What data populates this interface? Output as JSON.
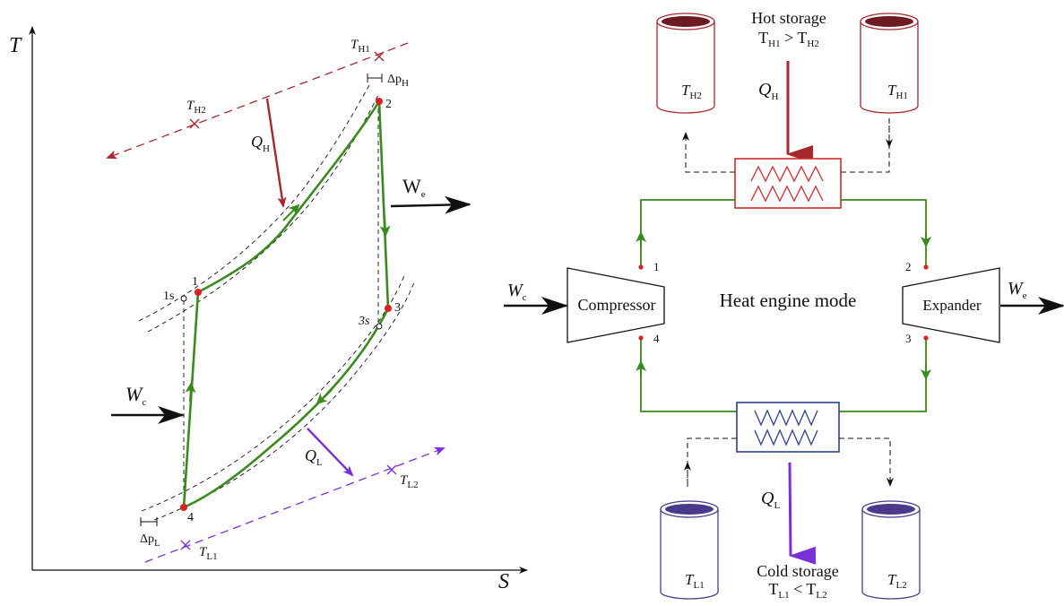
{
  "ts_diagram": {
    "axes": {
      "y": "T",
      "x": "S"
    },
    "states": {
      "p1": "1",
      "p1s": "1s",
      "p2": "2",
      "p3": "3",
      "p3s": "3s",
      "p4": "4"
    },
    "temps": {
      "th1": {
        "main": "T",
        "sub": "H1"
      },
      "th2": {
        "main": "T",
        "sub": "H2"
      },
      "tl1": {
        "main": "T",
        "sub": "L1"
      },
      "tl2": {
        "main": "T",
        "sub": "L2"
      }
    },
    "pressure_drops": {
      "dph": {
        "main": "Δp",
        "sub": "H"
      },
      "dpl": {
        "main": "Δp",
        "sub": "L"
      }
    },
    "heat": {
      "qh": {
        "main": "Q",
        "sub": "H"
      },
      "ql": {
        "main": "Q",
        "sub": "L"
      }
    },
    "work": {
      "we": {
        "main": "W",
        "sub": "e"
      },
      "wc": {
        "main": "W",
        "sub": "c"
      }
    }
  },
  "schematic": {
    "hot_storage": {
      "title": "Hot storage",
      "cond_a": "T",
      "cond_a_sub": "H1",
      "cond_op": ">",
      "cond_b": "T",
      "cond_b_sub": "H2"
    },
    "cold_storage": {
      "title": "Cold storage",
      "cond_a": "T",
      "cond_a_sub": "L1",
      "cond_op": "<",
      "cond_b": "T",
      "cond_b_sub": "L2"
    },
    "tanks": {
      "th2": {
        "main": "T",
        "sub": "H2"
      },
      "th1": {
        "main": "T",
        "sub": "H1"
      },
      "tl1": {
        "main": "T",
        "sub": "L1"
      },
      "tl2": {
        "main": "T",
        "sub": "L2"
      }
    },
    "qh": {
      "main": "Q",
      "sub": "H"
    },
    "ql": {
      "main": "Q",
      "sub": "L"
    },
    "compressor": "Compressor",
    "expander": "Expander",
    "mode": "Heat engine mode",
    "wc": {
      "main": "W",
      "sub": "c"
    },
    "we": {
      "main": "W",
      "sub": "e"
    },
    "ports": {
      "p1": "1",
      "p2": "2",
      "p3": "3",
      "p4": "4"
    }
  },
  "colors": {
    "cycle": "#3a8a1e",
    "hot": "#a8272d",
    "hot_tank": "#6e1a22",
    "cold": "#7b2fd6",
    "cold_tank": "#4b3a8c",
    "cold_hx": "#2d3f8f",
    "state_point": "#e02020",
    "line": "#111111"
  }
}
